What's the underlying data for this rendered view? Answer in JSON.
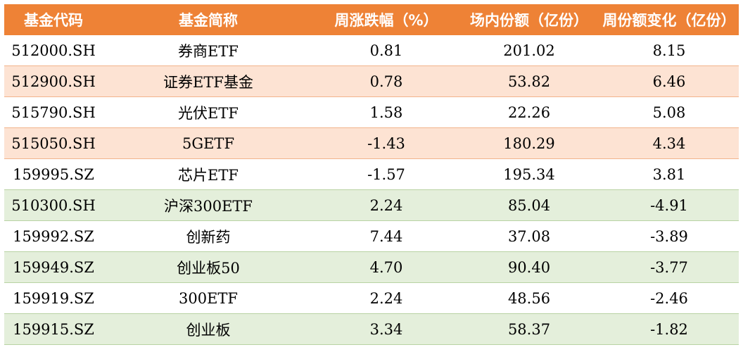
{
  "headers": [
    "基金代码",
    "基金简称",
    "周涨跌幅（%）",
    "场内份额（亿份）",
    "周份额变化（亿份）"
  ],
  "rows": [
    {
      "code": "512000.SH",
      "name": "券商ETF",
      "weekly_change": "0.81",
      "shares": "201.02",
      "share_change": "8.15",
      "style": "white"
    },
    {
      "code": "512900.SH",
      "name": "证券ETF基金",
      "weekly_change": "0.78",
      "shares": "53.82",
      "share_change": "6.46",
      "style": "peach"
    },
    {
      "code": "515790.SH",
      "name": "光伏ETF",
      "weekly_change": "1.58",
      "shares": "22.26",
      "share_change": "5.08",
      "style": "white"
    },
    {
      "code": "515050.SH",
      "name": "5GETF",
      "weekly_change": "-1.43",
      "shares": "180.29",
      "share_change": "4.34",
      "style": "peach"
    },
    {
      "code": "159995.SZ",
      "name": "芯片ETF",
      "weekly_change": "-1.57",
      "shares": "195.34",
      "share_change": "3.81",
      "style": "white"
    },
    {
      "code": "510300.SH",
      "name": "沪深300ETF",
      "weekly_change": "2.24",
      "shares": "85.04",
      "share_change": "-4.91",
      "style": "green"
    },
    {
      "code": "159992.SZ",
      "name": "创新药",
      "weekly_change": "7.44",
      "shares": "37.08",
      "share_change": "-3.89",
      "style": "white"
    },
    {
      "code": "159949.SZ",
      "name": "创业板50",
      "weekly_change": "4.70",
      "shares": "90.40",
      "share_change": "-3.77",
      "style": "green"
    },
    {
      "code": "159919.SZ",
      "name": "300ETF",
      "weekly_change": "2.24",
      "shares": "48.56",
      "share_change": "-2.46",
      "style": "white"
    },
    {
      "code": "159915.SZ",
      "name": "创业板",
      "weekly_change": "3.34",
      "shares": "58.37",
      "share_change": "-1.82",
      "style": "green"
    }
  ],
  "colors": {
    "header_bg": "#ee8236",
    "header_text": "#ffffff",
    "peach_row": "#fde3d3",
    "green_row": "#e4efdb"
  }
}
